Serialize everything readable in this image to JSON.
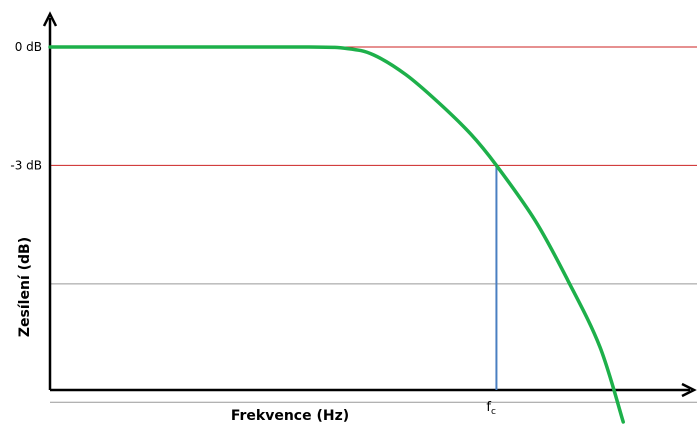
{
  "chart_data": {
    "type": "line",
    "title": "",
    "xlabel": "Frekvence (Hz)",
    "ylabel": "Zesílení (dB)",
    "y_tick_labels": [
      {
        "label": "0 dB",
        "value": 0
      },
      {
        "label": "-3 dB",
        "value": -3
      }
    ],
    "reference_lines": [
      {
        "value": 0,
        "color": "#cc2222"
      },
      {
        "value": -3,
        "color": "#cc2222"
      },
      {
        "value": -6,
        "color": "#999999"
      },
      {
        "value": -9,
        "color": "#999999"
      }
    ],
    "cutoff": {
      "main": "f",
      "sub": "c",
      "x": 0.69,
      "y": -3,
      "color": "#4a7fc1"
    },
    "xlim": [
      0,
      1
    ],
    "ylim": [
      -9.5,
      0
    ],
    "grid": false,
    "legend": "none",
    "series": [
      {
        "color": "#1db04a",
        "points": [
          [
            0.0,
            0.0
          ],
          [
            0.2,
            0.0
          ],
          [
            0.4,
            0.0
          ],
          [
            0.46,
            -0.04
          ],
          [
            0.5,
            -0.2
          ],
          [
            0.55,
            -0.7
          ],
          [
            0.6,
            -1.4
          ],
          [
            0.65,
            -2.2
          ],
          [
            0.69,
            -3.0
          ],
          [
            0.75,
            -4.4
          ],
          [
            0.8,
            -5.9
          ],
          [
            0.85,
            -7.6
          ],
          [
            0.886,
            -9.5
          ]
        ]
      }
    ]
  }
}
